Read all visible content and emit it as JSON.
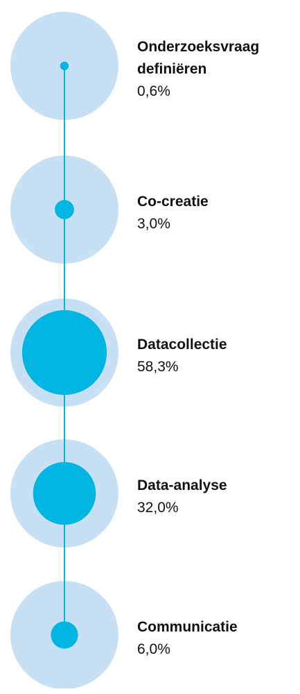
{
  "chart_data": {
    "type": "proportional-circles",
    "categories": [
      "Onderzoeksvraag definiëren",
      "Co-creatie",
      "Datacollectie",
      "Data-analyse",
      "Communicatie"
    ],
    "values": [
      0.6,
      3.0,
      58.3,
      32.0,
      6.0
    ],
    "value_labels": [
      "0,6%",
      "3,0%",
      "58,3%",
      "32,0%",
      "6,0%"
    ],
    "color": "#00b5e2",
    "background_color": "#c8e0f4"
  }
}
